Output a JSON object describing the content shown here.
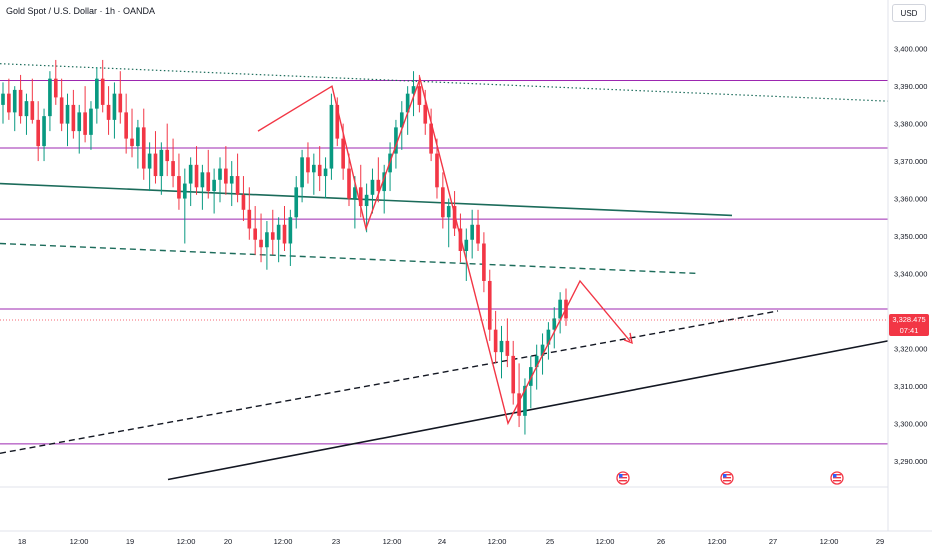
{
  "header": {
    "title": "Gold Spot / U.S. Dollar · 1h · OANDA",
    "currency": "USD"
  },
  "last_price": {
    "price": "3,328.475",
    "countdown": "07:41"
  },
  "colors": {
    "up": "#089981",
    "down": "#f23645",
    "level": "#9c27b0",
    "channel": "#1b6b5a",
    "projection": "#f23645",
    "trend": "#131722"
  },
  "event_icons": [
    "flag-us-icon",
    "flag-us-icon",
    "flag-us-icon"
  ],
  "chart_data": {
    "type": "candlestick",
    "title": "Gold Spot / U.S. Dollar · 1h · OANDA",
    "timeframe": "1h",
    "y_axis": {
      "ticks": [
        3290,
        3300,
        3310,
        3320,
        3340,
        3350,
        3360,
        3370,
        3380,
        3390,
        3400
      ],
      "tick_labels": [
        "3,290.000",
        "3,300.000",
        "3,310.000",
        "3,320.000",
        "3,340.000",
        "3,350.000",
        "3,360.000",
        "3,370.000",
        "3,380.000",
        "3,390.000",
        "3,400.000"
      ],
      "range": [
        3283,
        3413
      ]
    },
    "x_axis": {
      "tick_labels": [
        "18",
        "12:00",
        "19",
        "12:00",
        "20",
        "12:00",
        "23",
        "12:00",
        "24",
        "12:00",
        "25",
        "12:00",
        "26",
        "12:00",
        "27",
        "12:00",
        "29"
      ]
    },
    "horizontal_levels": [
      3391.5,
      3373.5,
      3354.5,
      3330.5,
      3294.5
    ],
    "last_price": 3328.475,
    "candles": [
      [
        3385,
        3391,
        3380,
        3388
      ],
      [
        3388,
        3392,
        3381,
        3383
      ],
      [
        3383,
        3390,
        3378,
        3389
      ],
      [
        3389,
        3393,
        3380,
        3382
      ],
      [
        3382,
        3388,
        3377,
        3386
      ],
      [
        3386,
        3392,
        3380,
        3381
      ],
      [
        3381,
        3386,
        3370,
        3374
      ],
      [
        3374,
        3384,
        3370,
        3382
      ],
      [
        3382,
        3394,
        3378,
        3392
      ],
      [
        3392,
        3397,
        3385,
        3387
      ],
      [
        3387,
        3392,
        3378,
        3380
      ],
      [
        3380,
        3388,
        3374,
        3385
      ],
      [
        3385,
        3389,
        3376,
        3378
      ],
      [
        3378,
        3385,
        3372,
        3383
      ],
      [
        3383,
        3390,
        3375,
        3377
      ],
      [
        3377,
        3386,
        3373,
        3384
      ],
      [
        3384,
        3395,
        3380,
        3392
      ],
      [
        3392,
        3397,
        3383,
        3385
      ],
      [
        3385,
        3390,
        3377,
        3381
      ],
      [
        3381,
        3391,
        3376,
        3388
      ],
      [
        3388,
        3394,
        3380,
        3383
      ],
      [
        3383,
        3388,
        3372,
        3376
      ],
      [
        3376,
        3384,
        3371,
        3374
      ],
      [
        3374,
        3381,
        3368,
        3379
      ],
      [
        3379,
        3384,
        3365,
        3368
      ],
      [
        3368,
        3375,
        3362,
        3372
      ],
      [
        3372,
        3378,
        3364,
        3366
      ],
      [
        3366,
        3375,
        3361,
        3373
      ],
      [
        3373,
        3380,
        3366,
        3370
      ],
      [
        3370,
        3376,
        3363,
        3366
      ],
      [
        3366,
        3372,
        3357,
        3360
      ],
      [
        3360,
        3368,
        3348,
        3364
      ],
      [
        3364,
        3371,
        3358,
        3369
      ],
      [
        3369,
        3374,
        3361,
        3363
      ],
      [
        3363,
        3369,
        3357,
        3367
      ],
      [
        3367,
        3373,
        3360,
        3362
      ],
      [
        3362,
        3368,
        3356,
        3365
      ],
      [
        3365,
        3371,
        3359,
        3368
      ],
      [
        3368,
        3374,
        3361,
        3364
      ],
      [
        3364,
        3370,
        3358,
        3366
      ],
      [
        3366,
        3372,
        3359,
        3361
      ],
      [
        3361,
        3366,
        3354,
        3357
      ],
      [
        3357,
        3363,
        3349,
        3352
      ],
      [
        3352,
        3358,
        3345,
        3349
      ],
      [
        3349,
        3356,
        3343,
        3347
      ],
      [
        3347,
        3354,
        3341,
        3351
      ],
      [
        3351,
        3357,
        3345,
        3349
      ],
      [
        3349,
        3355,
        3343,
        3353
      ],
      [
        3353,
        3358,
        3346,
        3348
      ],
      [
        3348,
        3357,
        3342,
        3355
      ],
      [
        3355,
        3366,
        3352,
        3363
      ],
      [
        3363,
        3373,
        3359,
        3371
      ],
      [
        3371,
        3375,
        3364,
        3367
      ],
      [
        3367,
        3372,
        3361,
        3369
      ],
      [
        3369,
        3374,
        3362,
        3366
      ],
      [
        3366,
        3371,
        3360,
        3368
      ],
      [
        3368,
        3388,
        3365,
        3385
      ],
      [
        3385,
        3387,
        3374,
        3376
      ],
      [
        3376,
        3380,
        3365,
        3368
      ],
      [
        3368,
        3372,
        3358,
        3360
      ],
      [
        3360,
        3366,
        3352,
        3363
      ],
      [
        3363,
        3369,
        3355,
        3358
      ],
      [
        3358,
        3364,
        3351,
        3361
      ],
      [
        3361,
        3368,
        3356,
        3365
      ],
      [
        3365,
        3371,
        3359,
        3362
      ],
      [
        3362,
        3369,
        3356,
        3367
      ],
      [
        3367,
        3375,
        3362,
        3372
      ],
      [
        3372,
        3381,
        3368,
        3379
      ],
      [
        3379,
        3386,
        3373,
        3383
      ],
      [
        3383,
        3390,
        3377,
        3388
      ],
      [
        3388,
        3394,
        3382,
        3390
      ],
      [
        3390,
        3393,
        3383,
        3385
      ],
      [
        3385,
        3389,
        3377,
        3380
      ],
      [
        3380,
        3384,
        3370,
        3372
      ],
      [
        3372,
        3376,
        3360,
        3363
      ],
      [
        3363,
        3367,
        3352,
        3355
      ],
      [
        3355,
        3360,
        3347,
        3358
      ],
      [
        3358,
        3362,
        3350,
        3352
      ],
      [
        3352,
        3356,
        3343,
        3346
      ],
      [
        3346,
        3352,
        3338,
        3349
      ],
      [
        3349,
        3357,
        3344,
        3353
      ],
      [
        3353,
        3357,
        3346,
        3348
      ],
      [
        3348,
        3351,
        3335,
        3338
      ],
      [
        3338,
        3341,
        3322,
        3325
      ],
      [
        3325,
        3330,
        3316,
        3319
      ],
      [
        3319,
        3326,
        3312,
        3322
      ],
      [
        3322,
        3328,
        3315,
        3318
      ],
      [
        3318,
        3322,
        3305,
        3308
      ],
      [
        3308,
        3316,
        3299,
        3302
      ],
      [
        3302,
        3312,
        3297,
        3310
      ],
      [
        3310,
        3318,
        3304,
        3315
      ],
      [
        3315,
        3321,
        3309,
        3318
      ],
      [
        3318,
        3324,
        3313,
        3321
      ],
      [
        3321,
        3327,
        3317,
        3325
      ],
      [
        3325,
        3331,
        3320,
        3328
      ],
      [
        3328,
        3335,
        3324,
        3333
      ],
      [
        3333,
        3336,
        3326,
        3328
      ]
    ],
    "annotations": {
      "red_zigzag_projection": [
        3378,
        3390,
        3352,
        3392,
        3300,
        3338,
        3322
      ],
      "solid_trendline": [
        3285,
        3322
      ],
      "dashed_trendline": [
        3292,
        3330
      ],
      "green_channel_line": [
        3364,
        3355.5
      ],
      "green_dashed_line": [
        3348,
        3340
      ]
    }
  }
}
